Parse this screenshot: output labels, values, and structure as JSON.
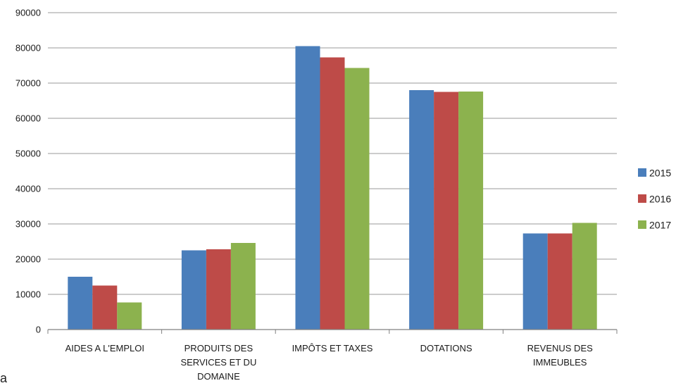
{
  "chart_data": {
    "type": "bar",
    "title": "",
    "xlabel": "",
    "ylabel": "",
    "ylim": [
      0,
      90000
    ],
    "yticks": [
      0,
      10000,
      20000,
      30000,
      40000,
      50000,
      60000,
      70000,
      80000,
      90000
    ],
    "grid": true,
    "legend_position": "right",
    "categories": [
      [
        "AIDES A L'EMPLOI"
      ],
      [
        "PRODUITS DES",
        "SERVICES ET DU",
        "DOMAINE"
      ],
      [
        "IMPÔTS ET TAXES"
      ],
      [
        "DOTATIONS"
      ],
      [
        "REVENUS DES",
        "IMMEUBLES"
      ]
    ],
    "series": [
      {
        "name": "2015",
        "color": "#4a7ebb",
        "values": [
          15000,
          22500,
          80500,
          68000,
          27300
        ]
      },
      {
        "name": "2016",
        "color": "#be4b48",
        "values": [
          12500,
          22800,
          77300,
          67500,
          27300
        ]
      },
      {
        "name": "2017",
        "color": "#8cb24e",
        "values": [
          7700,
          24600,
          74300,
          67600,
          30300
        ]
      }
    ]
  },
  "stray_text": "a"
}
